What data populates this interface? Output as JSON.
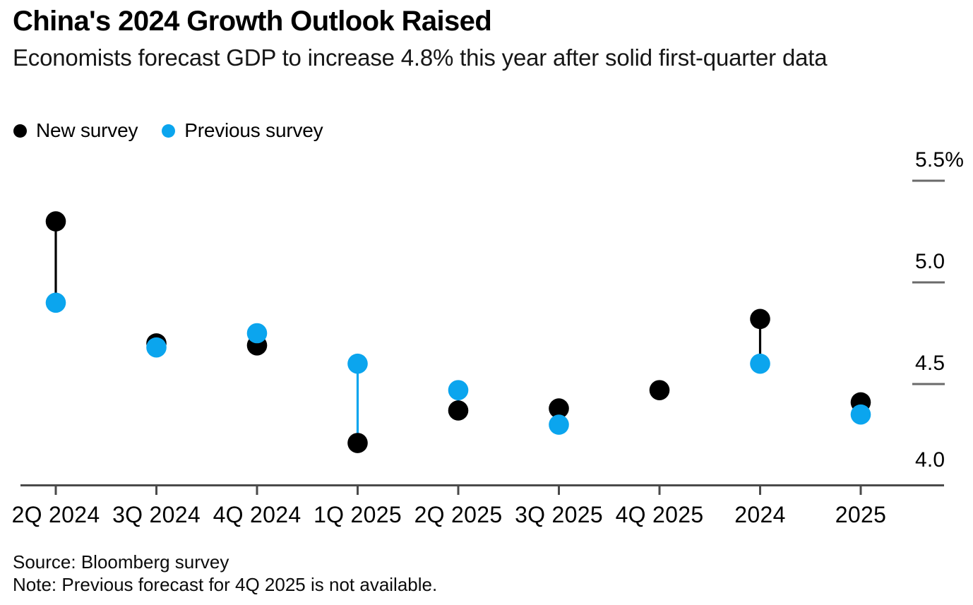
{
  "header": {
    "title": "China's 2024 Growth Outlook Raised",
    "subtitle": "Economists forecast GDP to increase 4.8% this year after solid first-quarter data"
  },
  "legend": {
    "items": [
      {
        "label": "New survey",
        "color": "#000000"
      },
      {
        "label": "Previous survey",
        "color": "#0ba5ee"
      }
    ]
  },
  "chart_data": {
    "type": "scatter",
    "subtype": "dumbbell-dot-plot",
    "title": "China's 2024 Growth Outlook Raised",
    "unit": "%",
    "categories": [
      "2Q 2024",
      "3Q 2024",
      "4Q 2024",
      "1Q 2025",
      "2Q 2025",
      "3Q 2025",
      "4Q 2025",
      "2024",
      "2025"
    ],
    "series": [
      {
        "name": "New survey",
        "color": "#000000",
        "values": [
          5.3,
          4.7,
          4.69,
          4.21,
          4.37,
          4.38,
          4.47,
          4.82,
          4.41
        ]
      },
      {
        "name": "Previous survey",
        "color": "#0ba5ee",
        "values": [
          4.9,
          4.68,
          4.75,
          4.6,
          4.47,
          4.3,
          null,
          4.6,
          4.35
        ]
      }
    ],
    "y_ticks": [
      {
        "label": "5.5%",
        "value": 5.5
      },
      {
        "label": "5.0",
        "value": 5.0
      },
      {
        "label": "4.5",
        "value": 4.5
      },
      {
        "label": "4.0",
        "value": 4.0
      }
    ],
    "ylim": [
      4.0,
      5.72
    ],
    "grid": false,
    "legend_position": "top-left",
    "axis_color": "#4a4a4a",
    "dash_color": "#6a6a6a",
    "connector_rule": "pairs joined by a line colored like the upper dot"
  },
  "footer": {
    "source": "Source: Bloomberg survey",
    "note": "Note: Previous forecast for 4Q 2025 is not available."
  }
}
